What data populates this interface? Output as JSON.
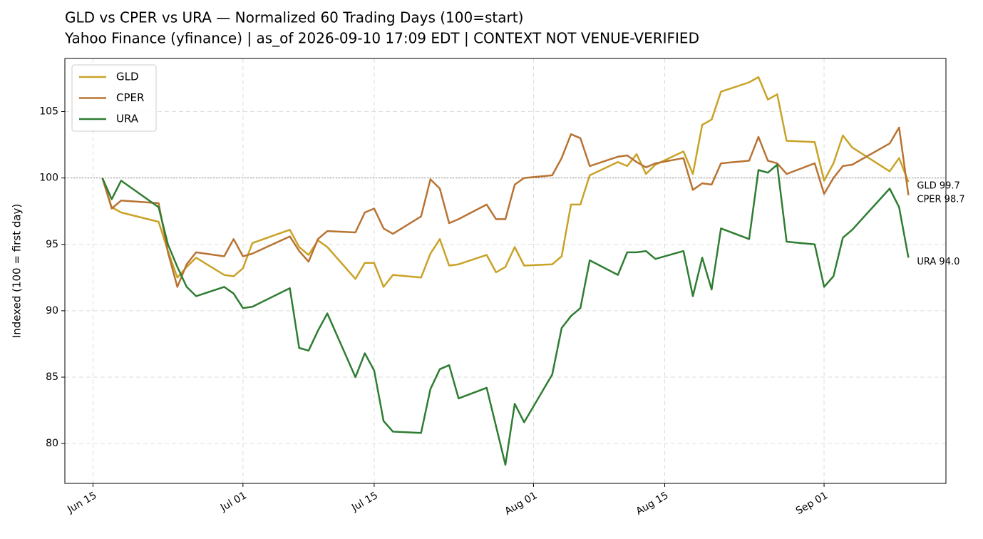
{
  "chart_data": {
    "type": "line",
    "title": "GLD vs CPER vs URA — Normalized 60 Trading Days (100=start)",
    "subtitle": "Yahoo Finance (yfinance) | as_of 2026-09-10 17:09 EDT | CONTEXT NOT VENUE-VERIFIED",
    "y_label": "Indexed (100 = first day)",
    "x": [
      "Jun 16",
      "Jun 17",
      "Jun 18",
      "Jun 22",
      "Jun 23",
      "Jun 24",
      "Jun 25",
      "Jun 26",
      "Jun 29",
      "Jun 30",
      "Jul 01",
      "Jul 02",
      "Jul 06",
      "Jul 07",
      "Jul 08",
      "Jul 09",
      "Jul 10",
      "Jul 13",
      "Jul 14",
      "Jul 15",
      "Jul 16",
      "Jul 17",
      "Jul 20",
      "Jul 21",
      "Jul 22",
      "Jul 23",
      "Jul 24",
      "Jul 27",
      "Jul 28",
      "Jul 29",
      "Jul 30",
      "Jul 31",
      "Aug 03",
      "Aug 04",
      "Aug 05",
      "Aug 06",
      "Aug 07",
      "Aug 10",
      "Aug 11",
      "Aug 12",
      "Aug 13",
      "Aug 14",
      "Aug 17",
      "Aug 18",
      "Aug 19",
      "Aug 20",
      "Aug 21",
      "Aug 24",
      "Aug 25",
      "Aug 26",
      "Aug 27",
      "Aug 28",
      "Aug 31",
      "Sep 01",
      "Sep 02",
      "Sep 03",
      "Sep 04",
      "Sep 08",
      "Sep 09",
      "Sep 10"
    ],
    "series": [
      {
        "name": "GLD",
        "color": "#c9a227",
        "values": [
          100,
          97.8,
          97.4,
          96.7,
          94.5,
          92.5,
          93.3,
          94.0,
          92.7,
          92.6,
          93.2,
          95.1,
          96.1,
          94.8,
          94.2,
          95.3,
          94.8,
          92.4,
          93.6,
          93.6,
          91.8,
          92.7,
          92.5,
          94.3,
          95.4,
          93.4,
          93.5,
          94.2,
          92.9,
          93.3,
          94.8,
          93.4,
          93.5,
          94.1,
          98.0,
          98.0,
          100.2,
          101.2,
          100.9,
          101.8,
          100.3,
          101.0,
          102.0,
          100.3,
          104.0,
          104.4,
          106.5,
          107.2,
          107.6,
          105.9,
          106.3,
          102.8,
          102.7,
          99.8,
          101.1,
          103.2,
          102.3,
          100.5,
          101.5,
          99.7
        ]
      },
      {
        "name": "CPER",
        "color": "#b87333",
        "values": [
          100,
          97.7,
          98.3,
          98.1,
          94.4,
          91.8,
          93.5,
          94.4,
          94.1,
          95.4,
          94.1,
          94.3,
          95.6,
          94.5,
          93.7,
          95.4,
          96.0,
          95.9,
          97.4,
          97.7,
          96.2,
          95.8,
          97.1,
          99.9,
          99.2,
          96.6,
          96.9,
          98.0,
          96.9,
          96.9,
          99.5,
          100.0,
          100.2,
          101.5,
          103.3,
          103.0,
          100.9,
          101.6,
          101.7,
          101.2,
          100.8,
          101.1,
          101.5,
          99.1,
          99.6,
          99.5,
          101.1,
          101.3,
          103.1,
          101.3,
          101.1,
          100.3,
          101.1,
          98.8,
          100.0,
          100.9,
          101.0,
          102.6,
          103.8,
          98.7
        ]
      },
      {
        "name": "URA",
        "color": "#2e7d32",
        "values": [
          100,
          98.4,
          99.8,
          97.8,
          95.0,
          93.3,
          91.8,
          91.1,
          91.8,
          91.3,
          90.2,
          90.3,
          91.7,
          87.2,
          87.0,
          88.5,
          89.8,
          85.0,
          86.8,
          85.5,
          81.7,
          80.9,
          80.8,
          84.1,
          85.6,
          85.9,
          83.4,
          84.2,
          81.3,
          78.4,
          83.0,
          81.6,
          85.2,
          88.7,
          89.6,
          90.2,
          93.8,
          92.7,
          94.4,
          94.4,
          94.5,
          93.9,
          94.5,
          91.1,
          94.0,
          91.6,
          96.2,
          95.4,
          100.6,
          100.4,
          101.0,
          95.2,
          95.0,
          91.8,
          92.6,
          95.5,
          96.1,
          99.2,
          97.8,
          94.0
        ]
      }
    ],
    "end_labels": [
      "GLD 99.7",
      "CPER 98.7",
      "URA 94.0"
    ],
    "reference_line": 100,
    "xlim": [
      "Jun 12",
      "Sep 14"
    ],
    "xticks": [
      "Jun 15",
      "Jul 01",
      "Jul 15",
      "Aug 01",
      "Aug 15",
      "Sep 01"
    ],
    "ylim": [
      77,
      109
    ],
    "yticks": [
      80,
      85,
      90,
      95,
      100,
      105
    ],
    "grid": true,
    "legend": "upper left"
  }
}
